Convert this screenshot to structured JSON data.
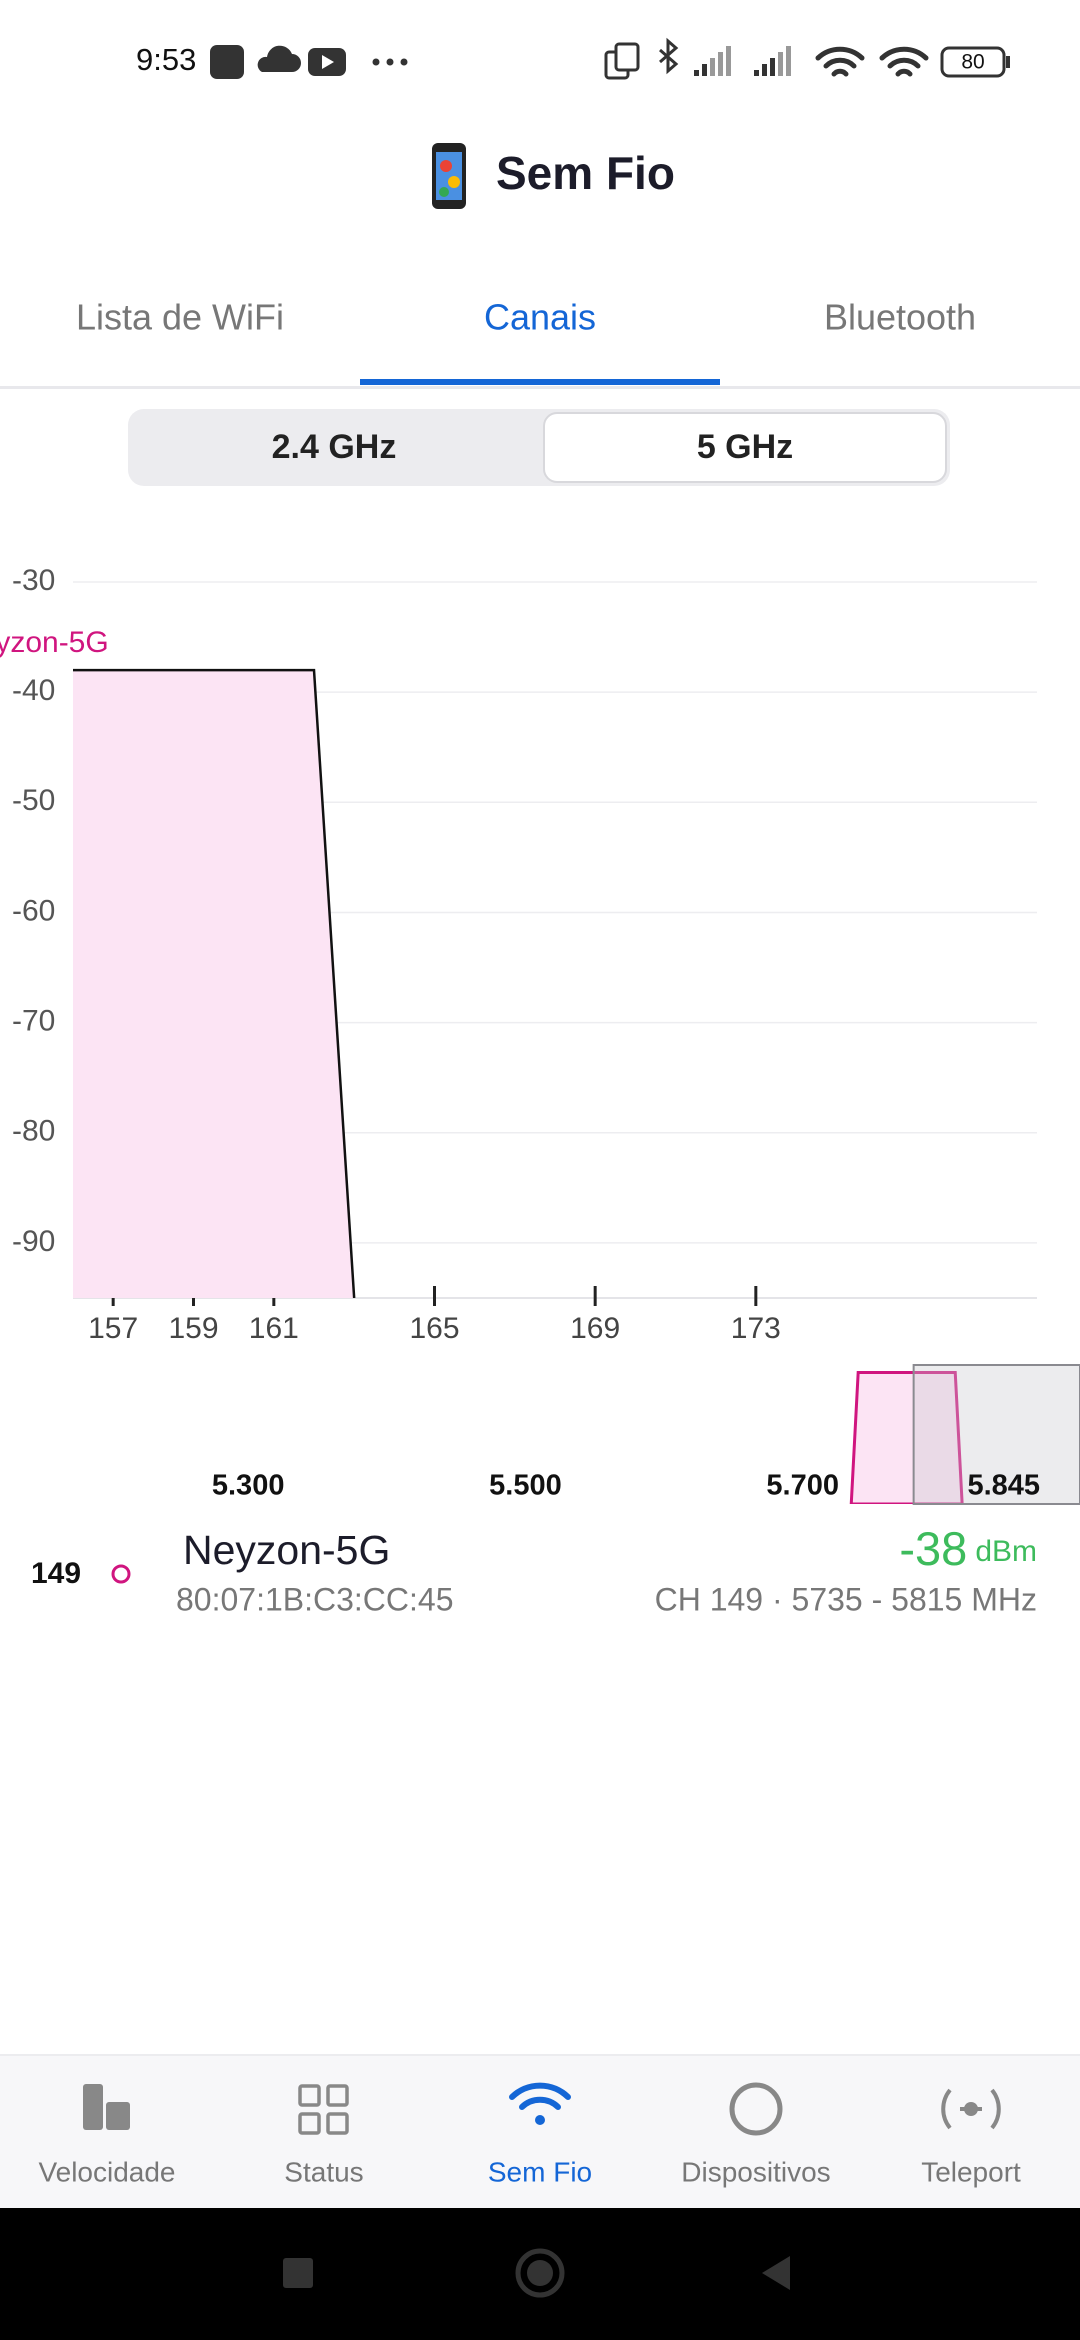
{
  "status_bar": {
    "time": "9:53",
    "battery": 80
  },
  "header": {
    "title": "Sem Fio"
  },
  "tabs": [
    "Lista de WiFi",
    "Canais",
    "Bluetooth"
  ],
  "active_tab": 1,
  "bands": {
    "options": [
      "2.4 GHz",
      "5 GHz"
    ],
    "selected": 1
  },
  "channel_chart": {
    "ylim": [
      -95,
      -30
    ],
    "yticks": [
      -30,
      -40,
      -50,
      -60,
      -70,
      -80,
      -90
    ],
    "xlim": [
      156,
      180
    ],
    "xticks": [
      157,
      159,
      161,
      165,
      169,
      173
    ],
    "grid": true
  },
  "overview": {
    "xlim": [
      5.121,
      5.9
    ],
    "xticks": [
      {
        "value": 5.3,
        "label": "5.300"
      },
      {
        "value": 5.5,
        "label": "5.500"
      },
      {
        "value": 5.7,
        "label": "5.700"
      },
      {
        "value": 5.845,
        "label": "5.845"
      }
    ]
  },
  "networks": [
    {
      "channel": 149,
      "ssid": "Neyzon-5G",
      "bssid": "80:07:1B:C3:CC:45",
      "signal": -38,
      "signal_unit": "dBm",
      "details": "CH 149 · 5735 - 5815 MHz",
      "channel_span": [
        147,
        163
      ],
      "color": "#d0157f"
    }
  ],
  "nav": {
    "items": [
      "Velocidade",
      "Status",
      "Sem Fio",
      "Dispositivos",
      "Teleport"
    ],
    "active": 2
  }
}
